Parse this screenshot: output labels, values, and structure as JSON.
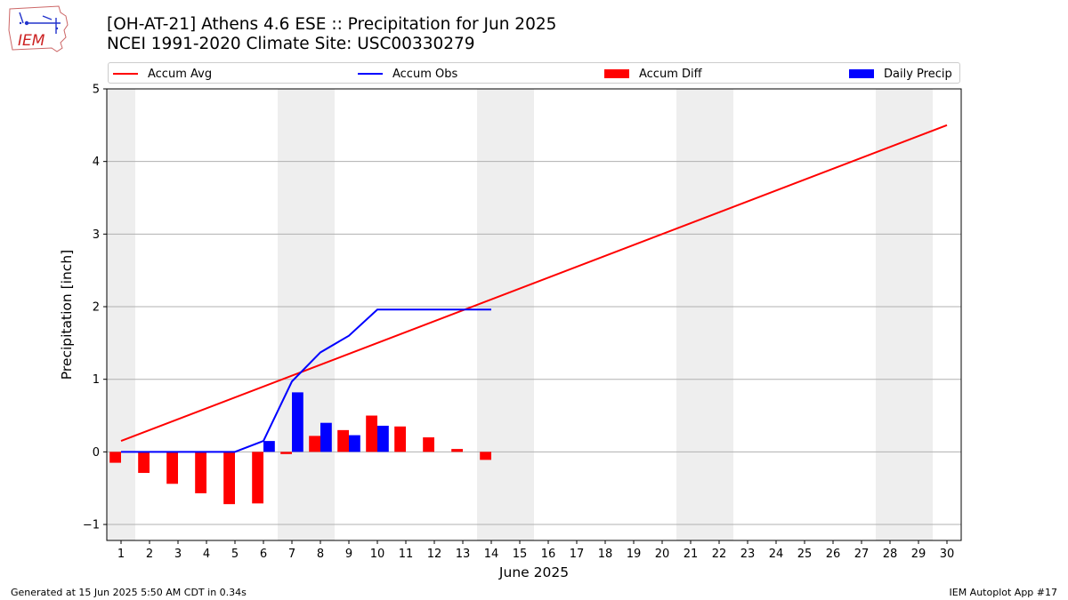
{
  "logo": {
    "text": "IEM"
  },
  "header": {
    "title_line1": "[OH-AT-21] Athens 4.6 ESE :: Precipitation for Jun 2025",
    "title_line2": "NCEI 1991-2020 Climate Site: USC00330279"
  },
  "legend": {
    "items": [
      {
        "label": "Accum Avg",
        "kind": "line",
        "color": "#ff0000"
      },
      {
        "label": "Accum Obs",
        "kind": "line",
        "color": "#0000ff"
      },
      {
        "label": "Accum Diff",
        "kind": "box",
        "color": "#ff0000"
      },
      {
        "label": "Daily Precip",
        "kind": "box",
        "color": "#0000ff"
      }
    ]
  },
  "footer": {
    "left": "Generated at 15 Jun 2025 5:50 AM CDT in 0.34s",
    "right": "IEM Autoplot App #17"
  },
  "chart_data": {
    "type": "bar",
    "xlabel": "June 2025",
    "ylabel": "Precipitation [inch]",
    "ylim": [
      -1.22,
      5.0
    ],
    "xlim": [
      0.5,
      30.5
    ],
    "yticks": [
      -1,
      0,
      1,
      2,
      3,
      4,
      5
    ],
    "grid": "y",
    "legend_position": "top",
    "days": [
      1,
      2,
      3,
      4,
      5,
      6,
      7,
      8,
      9,
      10,
      11,
      12,
      13,
      14,
      15,
      16,
      17,
      18,
      19,
      20,
      21,
      22,
      23,
      24,
      25,
      26,
      27,
      28,
      29,
      30
    ],
    "weekend_shading": [
      [
        0.5,
        1.5
      ],
      [
        6.5,
        8.5
      ],
      [
        13.5,
        15.5
      ],
      [
        20.5,
        22.5
      ],
      [
        27.5,
        29.5
      ]
    ],
    "series": [
      {
        "name": "Accum Avg",
        "kind": "line",
        "color": "#ff0000",
        "x": [
          1,
          30
        ],
        "values": [
          0.15,
          4.5
        ]
      },
      {
        "name": "Accum Obs",
        "kind": "line",
        "color": "#0000ff",
        "x": [
          1,
          2,
          3,
          4,
          5,
          6,
          7,
          8,
          9,
          10,
          11,
          12,
          13,
          14
        ],
        "values": [
          0.0,
          0.0,
          0.0,
          0.0,
          0.0,
          0.15,
          0.97,
          1.37,
          1.6,
          1.96,
          1.96,
          1.96,
          1.96,
          1.96
        ]
      },
      {
        "name": "Accum Diff",
        "kind": "bar",
        "color": "#ff0000",
        "x": [
          1,
          2,
          3,
          4,
          5,
          6,
          7,
          8,
          9,
          10,
          11,
          12,
          13,
          14
        ],
        "values": [
          -0.15,
          -0.29,
          -0.44,
          -0.57,
          -0.72,
          -0.71,
          -0.03,
          0.22,
          0.3,
          0.5,
          0.35,
          0.2,
          0.04,
          -0.11
        ]
      },
      {
        "name": "Daily Precip",
        "kind": "bar",
        "color": "#0000ff",
        "x": [
          6,
          7,
          8,
          9,
          10
        ],
        "values": [
          0.15,
          0.82,
          0.4,
          0.23,
          0.36
        ]
      }
    ]
  }
}
